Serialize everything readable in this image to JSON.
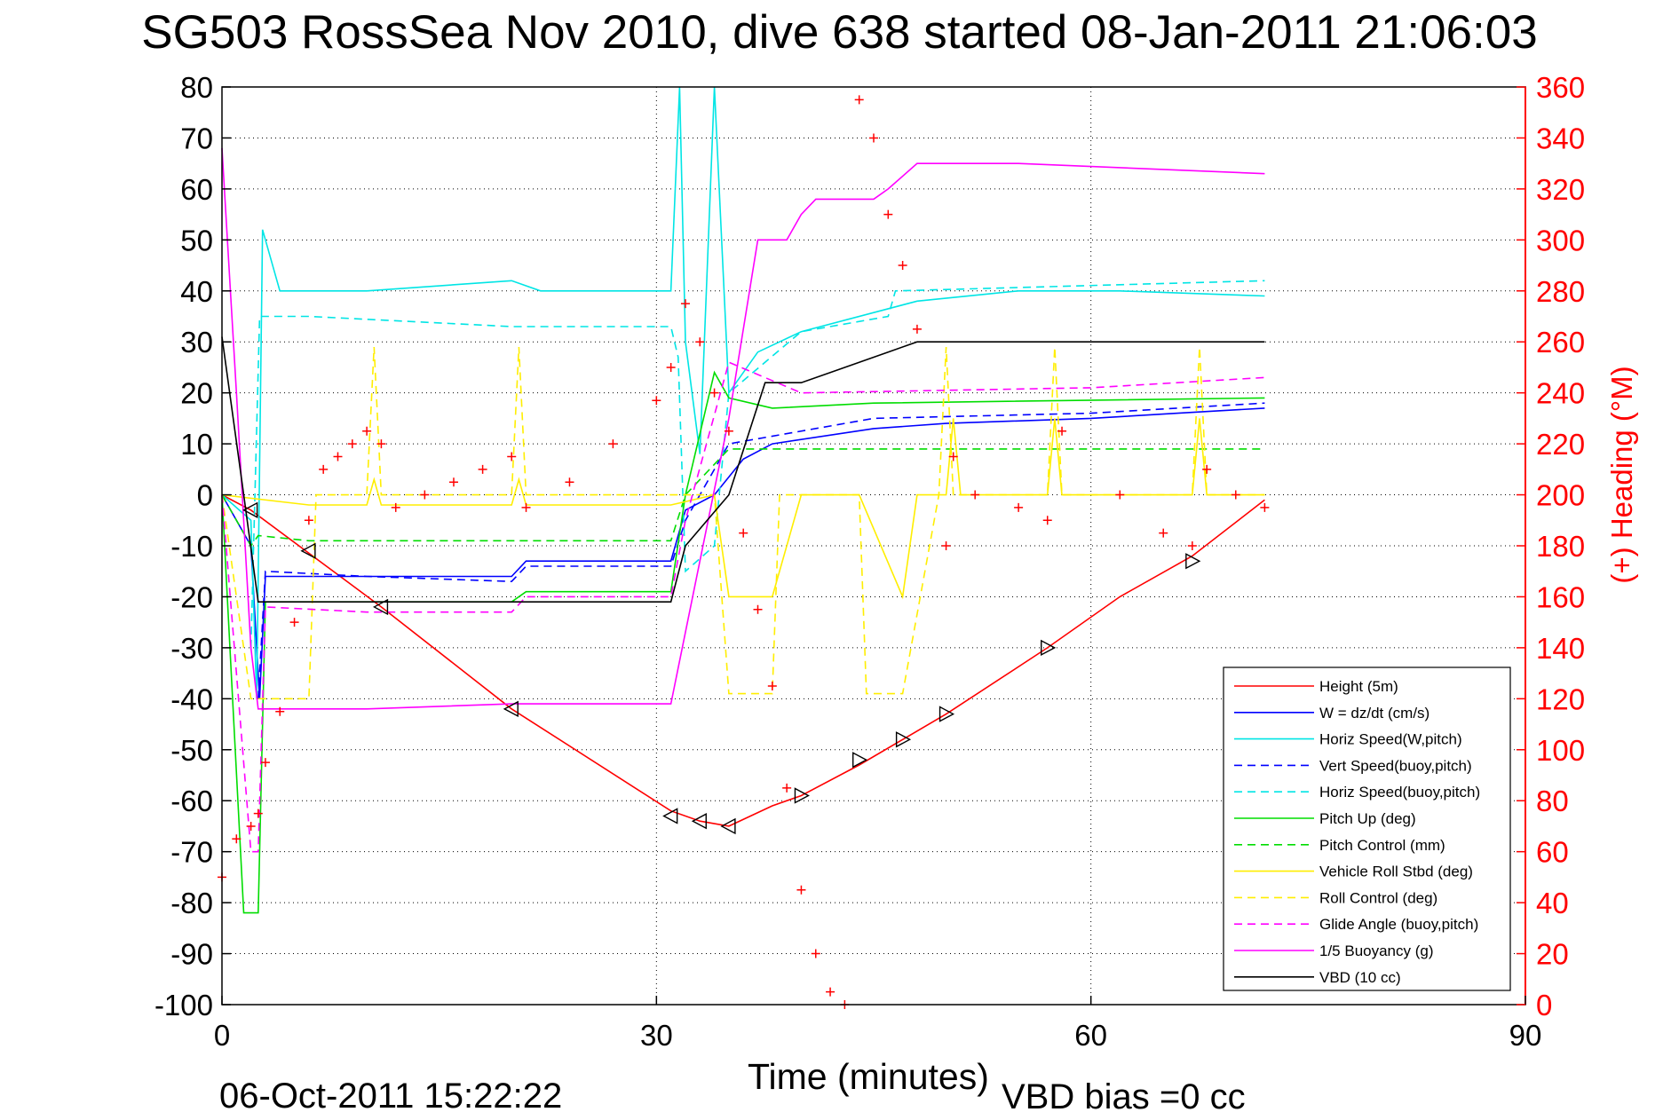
{
  "title": "SG503 RossSea Nov 2010, dive 638 started 08-Jan-2011 21:06:03",
  "footer": {
    "date": "06-Oct-2011 15:22:22",
    "vbd_bias": "VBD bias =0 cc"
  },
  "colors": {
    "red": "#ff0000",
    "blue": "#0000ff",
    "cyan": "#00e5e5",
    "green": "#00dd00",
    "yellow": "#ffee00",
    "magenta": "#ff00ff",
    "black": "#000000"
  },
  "chart_data": {
    "type": "line",
    "title": "SG503 RossSea Nov 2010, dive 638 started 08-Jan-2011 21:06:03",
    "xlabel": "Time (minutes)",
    "ylabel": "",
    "y2label": "(+) Heading (°M)",
    "xlim": [
      0,
      90
    ],
    "ylim": [
      -100,
      80
    ],
    "y2lim": [
      0,
      360
    ],
    "xticks": [
      0,
      30,
      60,
      90
    ],
    "yticks": [
      80,
      70,
      60,
      50,
      40,
      30,
      20,
      10,
      0,
      -10,
      -20,
      -30,
      -40,
      -50,
      -60,
      -70,
      -80,
      -90,
      -100
    ],
    "y2ticks": [
      360,
      340,
      320,
      300,
      280,
      260,
      240,
      220,
      200,
      180,
      160,
      140,
      120,
      100,
      80,
      60,
      40,
      20,
      0
    ],
    "grid": true,
    "legend_position": "bottom-right",
    "series": [
      {
        "name": "Height (5m)",
        "color": "#ff0000",
        "style": "solid",
        "x": [
          0,
          2,
          11,
          20,
          31,
          33,
          35,
          38,
          40,
          44,
          50,
          57,
          62,
          67,
          72
        ],
        "y": [
          0,
          -3,
          -22,
          -42,
          -62,
          -64,
          -65,
          -61,
          -59,
          -53,
          -43,
          -30,
          -20,
          -12,
          -1
        ]
      },
      {
        "name": "W = dz/dt (cm/s)",
        "color": "#0000ff",
        "style": "solid",
        "x": [
          0,
          2,
          2.6,
          3,
          10,
          20,
          21,
          31,
          32,
          34,
          36,
          38,
          45,
          50,
          60,
          66,
          72
        ],
        "y": [
          0,
          -10,
          -40,
          -16,
          -16,
          -16,
          -13,
          -13,
          -3,
          0,
          7,
          10,
          13,
          14,
          15,
          16,
          17
        ]
      },
      {
        "name": "Horiz Speed(W,pitch)",
        "color": "#00e5e5",
        "style": "solid",
        "x": [
          0,
          2,
          2.4,
          2.8,
          4,
          10,
          20,
          22,
          31,
          31.6,
          32,
          33,
          34,
          35,
          37,
          40,
          48,
          55,
          62,
          72
        ],
        "y": [
          0,
          -5,
          -40,
          52,
          40,
          40,
          42,
          40,
          40,
          80,
          30,
          8,
          80,
          20,
          28,
          32,
          38,
          40,
          40,
          39
        ]
      },
      {
        "name": "Vert Speed(buoy,pitch)",
        "color": "#0000ff",
        "style": "dashed",
        "x": [
          2.5,
          3,
          10,
          20,
          21,
          31,
          32,
          35,
          45,
          60,
          72
        ],
        "y": [
          -40,
          -15,
          -16,
          -17,
          -14,
          -14,
          -5,
          10,
          15,
          16,
          18
        ]
      },
      {
        "name": "Horiz Speed(buoy,pitch)",
        "color": "#00e5e5",
        "style": "dashed",
        "x": [
          2,
          2.6,
          6,
          20,
          31,
          31.5,
          32,
          34,
          35,
          40,
          46,
          46.5,
          72
        ],
        "y": [
          -30,
          35,
          35,
          33,
          33,
          27,
          -15,
          -10,
          20,
          32,
          35,
          40,
          42
        ]
      },
      {
        "name": "Pitch Up (deg)",
        "color": "#00dd00",
        "style": "solid",
        "x": [
          0,
          1.5,
          2.5,
          3,
          10,
          20,
          21,
          31,
          32,
          34,
          35,
          38,
          45,
          72
        ],
        "y": [
          0,
          -82,
          -82,
          -21,
          -21,
          -21,
          -19,
          -19,
          0,
          24,
          19,
          17,
          18,
          19
        ]
      },
      {
        "name": "Pitch Control (mm)",
        "color": "#00dd00",
        "style": "dashed",
        "x": [
          0,
          2,
          2.5,
          6,
          31,
          32,
          35,
          72
        ],
        "y": [
          0,
          -10,
          -8,
          -9,
          -9,
          0,
          9,
          9
        ]
      },
      {
        "name": "Vehicle Roll Stbd (deg)",
        "color": "#ffee00",
        "style": "solid",
        "x": [
          0,
          6,
          10,
          10.5,
          11,
          20,
          20.5,
          21,
          31,
          34,
          35,
          38,
          40,
          44,
          47,
          48,
          50,
          50.5,
          51,
          57,
          57.5,
          58,
          67,
          67.5,
          68,
          72
        ],
        "y": [
          0,
          -2,
          -2,
          3,
          -2,
          -2,
          3,
          -2,
          -2,
          0,
          -20,
          -20,
          0,
          0,
          -20,
          0,
          0,
          15,
          0,
          0,
          15,
          0,
          0,
          15,
          0,
          0
        ]
      },
      {
        "name": "Roll Control (deg)",
        "color": "#ffee00",
        "style": "dashed",
        "x": [
          0,
          2,
          3,
          6,
          6.5,
          10,
          10.5,
          11,
          20,
          20.5,
          21,
          34,
          35,
          38,
          38.5,
          44,
          44.5,
          47,
          49.5,
          50,
          50.5,
          57,
          57.5,
          58,
          67,
          67.5,
          68,
          72
        ],
        "y": [
          0,
          -40,
          -40,
          -40,
          0,
          0,
          29,
          0,
          0,
          29,
          0,
          0,
          -39,
          -39,
          0,
          0,
          -39,
          -39,
          0,
          29,
          0,
          0,
          29,
          0,
          0,
          29,
          0,
          0
        ]
      },
      {
        "name": "Glide Angle (buoy,pitch)",
        "color": "#ff00ff",
        "style": "dashed",
        "x": [
          0,
          2,
          2.5,
          3,
          10,
          20,
          21,
          31,
          32,
          35,
          40,
          60,
          72
        ],
        "y": [
          0,
          -70,
          -70,
          -22,
          -23,
          -23,
          -20,
          -20,
          -5,
          26,
          20,
          21,
          23
        ]
      },
      {
        "name": "1/5 Buoyancy (g)",
        "color": "#ff00ff",
        "style": "solid",
        "x": [
          0,
          1,
          2,
          2.5,
          10,
          20,
          31,
          35,
          37,
          39,
          40,
          41,
          45,
          46,
          48,
          55,
          72
        ],
        "y": [
          68,
          20,
          -30,
          -42,
          -42,
          -41,
          -41,
          15,
          50,
          50,
          55,
          58,
          58,
          60,
          65,
          65,
          63
        ]
      },
      {
        "name": "VBD (10 cc)",
        "color": "#000000",
        "style": "solid",
        "x": [
          0,
          1.5,
          2.5,
          10,
          20,
          31,
          32,
          35,
          37.5,
          40,
          42,
          44,
          46,
          48,
          60,
          72
        ],
        "y": [
          31,
          0,
          -21,
          -21,
          -21,
          -21,
          -10,
          0,
          22,
          22,
          24,
          26,
          28,
          30,
          30,
          30
        ]
      }
    ],
    "heading": {
      "name": "(+) Heading (°M)",
      "axis": "right",
      "color": "#ff0000",
      "marker": "+",
      "x": [
        0,
        1,
        2,
        2.5,
        3,
        4,
        5,
        6,
        7,
        8,
        9,
        10,
        11,
        12,
        14,
        16,
        18,
        20,
        21,
        24,
        27,
        30,
        31,
        32,
        33,
        34,
        35,
        36,
        37,
        38,
        39,
        40,
        41,
        42,
        43,
        44,
        45,
        46,
        47,
        48,
        50,
        50.5,
        52,
        55,
        57,
        58,
        62,
        65,
        67,
        68,
        70,
        72
      ],
      "y": [
        50,
        65,
        70,
        75,
        95,
        115,
        150,
        190,
        210,
        215,
        220,
        225,
        220,
        195,
        200,
        205,
        210,
        215,
        195,
        205,
        220,
        237,
        250,
        275,
        260,
        240,
        225,
        185,
        155,
        125,
        85,
        45,
        20,
        5,
        0,
        355,
        340,
        310,
        290,
        265,
        180,
        215,
        200,
        195,
        190,
        225,
        200,
        185,
        180,
        210,
        200,
        195
      ]
    },
    "markers": {
      "name": "triangle markers",
      "color": "#000000",
      "x": [
        2,
        6,
        11,
        20,
        31,
        33,
        35,
        40,
        44,
        47,
        50,
        57,
        67
      ],
      "y": [
        -3,
        -11,
        -22,
        -42,
        -63,
        -64,
        -65,
        -59,
        -52,
        -48,
        -43,
        -30,
        -13
      ]
    }
  },
  "legend": [
    {
      "label": "Height (5m)",
      "color": "#ff0000",
      "style": "solid"
    },
    {
      "label": "W = dz/dt (cm/s)",
      "color": "#0000ff",
      "style": "solid"
    },
    {
      "label": "Horiz Speed(W,pitch)",
      "color": "#00e5e5",
      "style": "solid"
    },
    {
      "label": "Vert Speed(buoy,pitch)",
      "color": "#0000ff",
      "style": "dashed"
    },
    {
      "label": "Horiz Speed(buoy,pitch)",
      "color": "#00e5e5",
      "style": "dashed"
    },
    {
      "label": "Pitch Up (deg)",
      "color": "#00dd00",
      "style": "solid"
    },
    {
      "label": "Pitch Control (mm)",
      "color": "#00dd00",
      "style": "dashed"
    },
    {
      "label": "Vehicle Roll Stbd (deg)",
      "color": "#ffee00",
      "style": "solid"
    },
    {
      "label": "Roll Control (deg)",
      "color": "#ffee00",
      "style": "dashed"
    },
    {
      "label": "Glide Angle (buoy,pitch)",
      "color": "#ff00ff",
      "style": "dashed"
    },
    {
      "label": "1/5 Buoyancy (g)",
      "color": "#ff00ff",
      "style": "solid"
    },
    {
      "label": "VBD (10 cc)",
      "color": "#000000",
      "style": "solid"
    }
  ]
}
